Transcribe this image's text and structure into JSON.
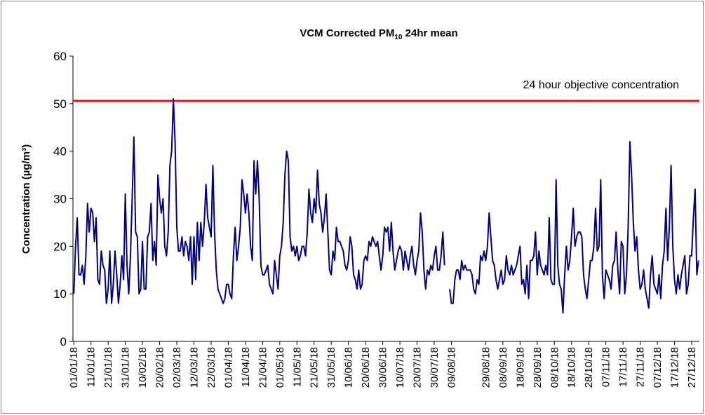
{
  "chart_data": {
    "type": "line",
    "title_parts": [
      "VCM Corrected PM",
      "10",
      " 24hr mean"
    ],
    "ylabel": "Concentration (µg/m³)",
    "ylim": [
      0,
      60
    ],
    "yticks": [
      0,
      10,
      20,
      30,
      40,
      50,
      60
    ],
    "grid": false,
    "reference_line": {
      "value": 50.6,
      "label": "24 hour objective concentration",
      "color": "#ff0000"
    },
    "categories": [
      "01/01/18",
      null,
      null,
      null,
      null,
      null,
      null,
      null,
      null,
      null,
      "11/01/18",
      null,
      null,
      null,
      null,
      null,
      null,
      null,
      null,
      null,
      "21/01/18",
      null,
      null,
      null,
      null,
      null,
      null,
      null,
      null,
      null,
      "31/01/18",
      null,
      null,
      null,
      null,
      null,
      null,
      null,
      null,
      null,
      "10/02/18",
      null,
      null,
      null,
      null,
      null,
      null,
      null,
      null,
      null,
      "20/02/18",
      null,
      null,
      null,
      null,
      null,
      null,
      null,
      null,
      null,
      "02/03/18",
      null,
      null,
      null,
      null,
      null,
      null,
      null,
      null,
      null,
      "12/03/18",
      null,
      null,
      null,
      null,
      null,
      null,
      null,
      null,
      null,
      "22/03/18",
      null,
      null,
      null,
      null,
      null,
      null,
      null,
      null,
      null,
      "01/04/18",
      null,
      null,
      null,
      null,
      null,
      null,
      null,
      null,
      null,
      "11/04/18",
      null,
      null,
      null,
      null,
      null,
      null,
      null,
      null,
      null,
      "21/04/18",
      null,
      null,
      null,
      null,
      null,
      null,
      null,
      null,
      null,
      "01/05/18",
      null,
      null,
      null,
      null,
      null,
      null,
      null,
      null,
      null,
      "11/05/18",
      null,
      null,
      null,
      null,
      null,
      null,
      null,
      null,
      null,
      "21/05/18",
      null,
      null,
      null,
      null,
      null,
      null,
      null,
      null,
      null,
      "31/05/18",
      null,
      null,
      null,
      null,
      null,
      null,
      null,
      null,
      null,
      "10/06/18",
      null,
      null,
      null,
      null,
      null,
      null,
      null,
      null,
      null,
      "20/06/18",
      null,
      null,
      null,
      null,
      null,
      null,
      null,
      null,
      null,
      "30/06/18",
      null,
      null,
      null,
      null,
      null,
      null,
      null,
      null,
      null,
      "10/07/18",
      null,
      null,
      null,
      null,
      null,
      null,
      null,
      null,
      null,
      "20/07/18",
      null,
      null,
      null,
      null,
      null,
      null,
      null,
      null,
      null,
      "30/07/18",
      null,
      null,
      null,
      null,
      null,
      null,
      null,
      null,
      null,
      "09/08/18",
      null,
      null,
      null,
      null,
      null,
      null,
      null,
      null,
      null,
      null,
      null,
      null,
      null,
      null,
      null,
      null,
      null,
      null,
      null,
      "29/08/18",
      null,
      null,
      null,
      null,
      null,
      null,
      null,
      null,
      null,
      "08/09/18",
      null,
      null,
      null,
      null,
      null,
      null,
      null,
      null,
      null,
      "18/09/18",
      null,
      null,
      null,
      null,
      null,
      null,
      null,
      null,
      null,
      "28/09/18",
      null,
      null,
      null,
      null,
      null,
      null,
      null,
      null,
      null,
      "08/10/18",
      null,
      null,
      null,
      null,
      null,
      null,
      null,
      null,
      null,
      "18/10/18",
      null,
      null,
      null,
      null,
      null,
      null,
      null,
      null,
      null,
      "28/10/18",
      null,
      null,
      null,
      null,
      null,
      null,
      null,
      null,
      null,
      "07/11/18",
      null,
      null,
      null,
      null,
      null,
      null,
      null,
      null,
      null,
      "17/11/18",
      null,
      null,
      null,
      null,
      null,
      null,
      null,
      null,
      null,
      "27/11/18",
      null,
      null,
      null,
      null,
      null,
      null,
      null,
      null,
      null,
      "07/12/18",
      null,
      null,
      null,
      null,
      null,
      null,
      null,
      null,
      null,
      "17/12/18",
      null,
      null,
      null,
      null,
      null,
      null,
      null,
      null,
      null,
      "27/12/18",
      null,
      null,
      null,
      null
    ],
    "series": [
      {
        "color": "#000080",
        "values": [
          10,
          20,
          26,
          14,
          14,
          16,
          12,
          18,
          29,
          23,
          28,
          27,
          21,
          26,
          13,
          12,
          19,
          16,
          15,
          8,
          11,
          19,
          8,
          12,
          19,
          14,
          8,
          12,
          18,
          13,
          31,
          16,
          10,
          18,
          30,
          43,
          23,
          22,
          10,
          11,
          21,
          11,
          11,
          22,
          23,
          29,
          17,
          21,
          16,
          35,
          30,
          27,
          30,
          20,
          18,
          23,
          37,
          40,
          51,
          42,
          24,
          19,
          19,
          22,
          18,
          21,
          20,
          17,
          22,
          12,
          22,
          13,
          25,
          17,
          25,
          20,
          25,
          33,
          26,
          24,
          22,
          37,
          23,
          15,
          11,
          10,
          9,
          8,
          9,
          12,
          12,
          10,
          9,
          18,
          24,
          17,
          20,
          24,
          34,
          31,
          27,
          31,
          27,
          20,
          17,
          38,
          31,
          38,
          30,
          16,
          14,
          14,
          15,
          16,
          12,
          11,
          10,
          17,
          14,
          11,
          18,
          20,
          25,
          35,
          40,
          38,
          22,
          19,
          20,
          18,
          20,
          17,
          18,
          20,
          20,
          18,
          23,
          32,
          27,
          25,
          30,
          27,
          36,
          29,
          27,
          23,
          26,
          31,
          23,
          15,
          14,
          19,
          17,
          24,
          21,
          21,
          20,
          19,
          16,
          15,
          17,
          22,
          20,
          14,
          13,
          11,
          15,
          11,
          12,
          17,
          18,
          17,
          21,
          20,
          22,
          21,
          20,
          21,
          18,
          15,
          18,
          24,
          23,
          24,
          19,
          25,
          19,
          15,
          17,
          19,
          20,
          19,
          15,
          19,
          17,
          15,
          18,
          20,
          16,
          14,
          17,
          19,
          27,
          23,
          15,
          11,
          15,
          14,
          16,
          15,
          18,
          20,
          15,
          15,
          18,
          23,
          16,
          null,
          null,
          11,
          8,
          8,
          13,
          15,
          15,
          13,
          17,
          15,
          16,
          15,
          15,
          15,
          14,
          11,
          10,
          13,
          12,
          18,
          17,
          19,
          17,
          20,
          27,
          22,
          17,
          16,
          13,
          11,
          13,
          15,
          12,
          13,
          18,
          15,
          14,
          16,
          14,
          15,
          16,
          18,
          20,
          12,
          13,
          10,
          16,
          9,
          17,
          17,
          18,
          23,
          14,
          19,
          16,
          15,
          14,
          16,
          14,
          26,
          13,
          12,
          12,
          34,
          16,
          12,
          11,
          6,
          14,
          20,
          15,
          17,
          22,
          28,
          20,
          22,
          23,
          23,
          22,
          14,
          11,
          9,
          13,
          17,
          17,
          20,
          28,
          19,
          20,
          34,
          14,
          9,
          15,
          14,
          13,
          11,
          16,
          17,
          23,
          15,
          10,
          21,
          20,
          10,
          14,
          24,
          42,
          35,
          25,
          19,
          22,
          15,
          11,
          12,
          15,
          11,
          9,
          7,
          14,
          18,
          12,
          11,
          10,
          14,
          9,
          16,
          19,
          28,
          17,
          24,
          37,
          20,
          13,
          10,
          14,
          11,
          14,
          16,
          18,
          10,
          12,
          18,
          18,
          26,
          32,
          14,
          17
        ]
      }
    ]
  }
}
